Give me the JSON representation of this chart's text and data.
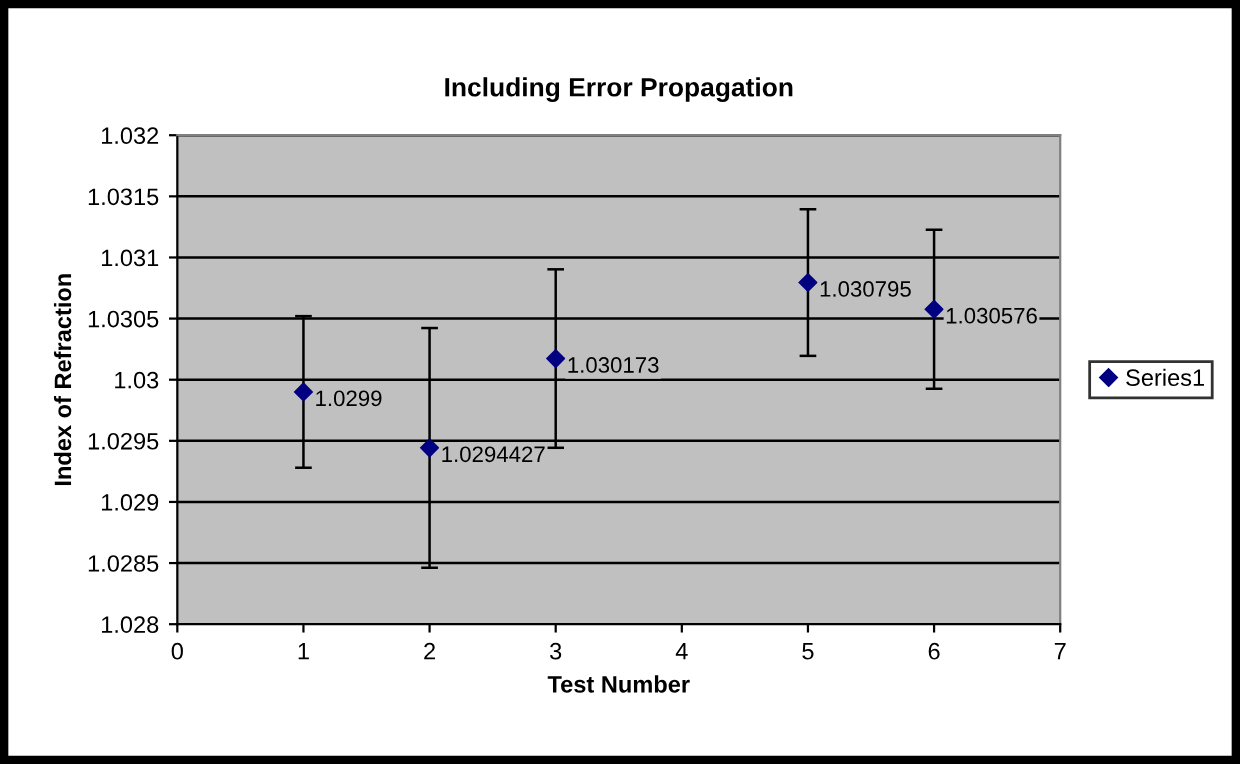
{
  "chart_data": {
    "type": "scatter",
    "title": "Including Error Propagation",
    "xlabel": "Test Number",
    "ylabel": "Index of Refraction",
    "x": [
      1,
      2,
      3,
      5,
      6
    ],
    "series": [
      {
        "name": "Series1",
        "color": "#000080",
        "values": [
          1.0299,
          1.0294427,
          1.030173,
          1.030795,
          1.030576
        ],
        "errors": [
          0.00062,
          0.00098,
          0.00073,
          0.0006,
          0.00065
        ]
      }
    ],
    "data_labels": true,
    "marker": "diamond",
    "xlim": [
      0,
      7
    ],
    "xticks": [
      0,
      1,
      2,
      3,
      4,
      5,
      6,
      7
    ],
    "ylim": [
      1.028,
      1.032
    ],
    "yticks": [
      1.028,
      1.0285,
      1.029,
      1.0295,
      1.03,
      1.0305,
      1.031,
      1.0315,
      1.032
    ],
    "grid": "y",
    "legend": "right"
  }
}
